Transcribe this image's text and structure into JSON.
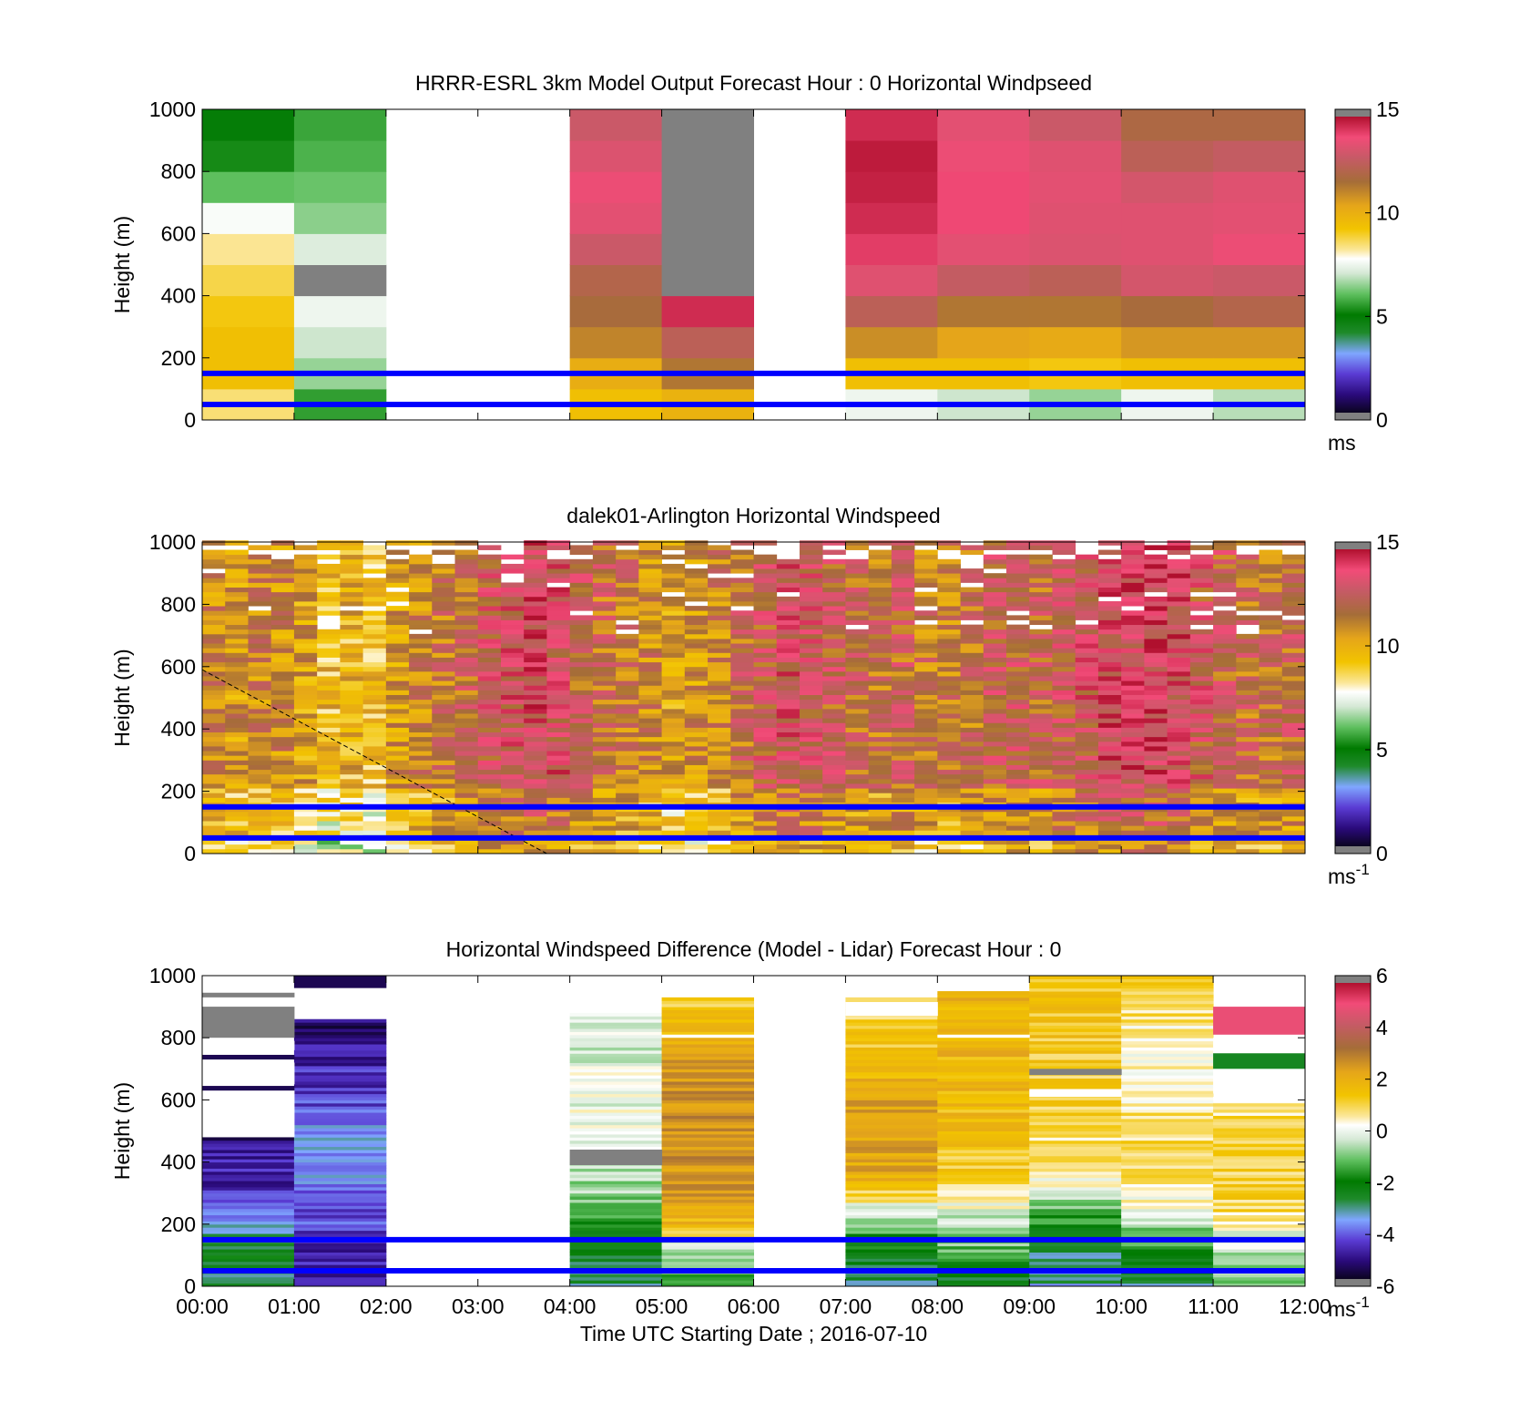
{
  "chart_data": [
    {
      "type": "heatmap",
      "title": "HRRR-ESRL 3km Model Output   Forecast Hour : 0 Horizontal Windpseed",
      "xlabel": "",
      "ylabel": "Height (m)",
      "xlim": [
        0,
        12
      ],
      "ylim": [
        0,
        1000
      ],
      "y_ticks": [
        "0",
        "200",
        "400",
        "600",
        "800",
        "1000"
      ],
      "x_ticks": [],
      "colorbar": {
        "min": 0,
        "max": 15,
        "ticks": [
          "0",
          "5",
          "10",
          "15"
        ],
        "unit": "ms",
        "unit_sup": ""
      },
      "reference_lines_m": [
        50,
        150
      ],
      "reference_line_color": "#0000ff",
      "cell_height_m": 100,
      "columns": [
        {
          "t0": 0,
          "t1": 1,
          "values": [
            8.5,
            9.5,
            9.5,
            9.2,
            8.8,
            8.3,
            7.7,
            6.0,
            5.2,
            4.8
          ]
        },
        {
          "t0": 1,
          "t1": 2,
          "values": [
            5.5,
            6.5,
            7.0,
            7.5,
            "nan",
            7.2,
            6.4,
            6.1,
            5.8,
            5.6
          ]
        },
        {
          "t0": 4,
          "t1": 5,
          "values": [
            9.5,
            10.2,
            11.2,
            11.8,
            12.2,
            13.0,
            13.6,
            13.8,
            13.4,
            13.0
          ]
        },
        {
          "t0": 5,
          "t1": 6,
          "values": [
            10.0,
            11.5,
            12.5,
            14.5,
            "nan",
            "nan",
            "nan",
            "nan",
            "nan",
            "nan"
          ]
        },
        {
          "t0": 7,
          "t1": 8,
          "values": [
            7.5,
            9.5,
            11.0,
            12.5,
            13.5,
            14.2,
            14.5,
            14.7,
            14.8,
            14.5
          ]
        },
        {
          "t0": 8,
          "t1": 9,
          "values": [
            7.0,
            9.5,
            10.5,
            11.5,
            12.8,
            13.6,
            14.0,
            14.0,
            13.8,
            13.6
          ]
        },
        {
          "t0": 9,
          "t1": 10,
          "values": [
            6.5,
            9.2,
            10.3,
            11.5,
            12.5,
            13.4,
            13.5,
            13.6,
            13.5,
            13.0
          ]
        },
        {
          "t0": 10,
          "t1": 11,
          "values": [
            7.5,
            9.5,
            10.8,
            11.8,
            13.2,
            13.5,
            13.5,
            13.2,
            12.5,
            12.0
          ]
        },
        {
          "t0": 11,
          "t1": 12,
          "values": [
            6.8,
            9.5,
            10.8,
            12.2,
            13.0,
            13.8,
            13.6,
            13.5,
            12.8,
            12.0
          ]
        }
      ],
      "undefined_value_color": "#808080"
    },
    {
      "type": "heatmap",
      "title": "dalek01-Arlington  Horizontal Windspeed",
      "xlabel": "",
      "ylabel": "Height (m)",
      "xlim": [
        0,
        12
      ],
      "ylim": [
        0,
        1000
      ],
      "y_ticks": [
        "0",
        "200",
        "400",
        "600",
        "800",
        "1000"
      ],
      "x_ticks": [],
      "colorbar": {
        "min": 0,
        "max": 15,
        "ticks": [
          "0",
          "5",
          "10",
          "15"
        ],
        "unit": "ms",
        "unit_sup": "-1"
      },
      "reference_lines_m": [
        50,
        150
      ],
      "reference_line_color": "#0000ff",
      "time_step_h": 0.25,
      "cell_height_m": 15,
      "profile_mean_ms": [
        11.2,
        10.8,
        11.2,
        11.0,
        10.6,
        9.6,
        9.8,
        9.4,
        10.8,
        11.2,
        11.6,
        12.2,
        12.8,
        13.2,
        13.6,
        13.2,
        12.4,
        12.0,
        11.6,
        11.2,
        10.4,
        10.8,
        11.2,
        12.0,
        12.6,
        13.2,
        12.8,
        12.4,
        12.0,
        11.8,
        12.2,
        11.6,
        11.4,
        11.8,
        12.4,
        12.6,
        12.2,
        12.6,
        13.0,
        13.6,
        13.6,
        13.8,
        13.6,
        12.8,
        12.4,
        12.0,
        11.8,
        12.2
      ],
      "dashed_line": {
        "x": [
          0,
          3.75
        ],
        "y": [
          590,
          0
        ],
        "color": "#000000"
      }
    },
    {
      "type": "heatmap",
      "title": "Horizontal Windspeed Difference (Model - Lidar) Forecast Hour : 0",
      "xlabel": "Time UTC  Starting Date ; 2016-07-10",
      "ylabel": "Height (m)",
      "xlim": [
        0,
        12
      ],
      "ylim": [
        0,
        1000
      ],
      "y_ticks": [
        "0",
        "200",
        "400",
        "600",
        "800",
        "1000"
      ],
      "x_ticks": [
        "00:00",
        "01:00",
        "02:00",
        "03:00",
        "04:00",
        "05:00",
        "06:00",
        "07:00",
        "08:00",
        "09:00",
        "10:00",
        "11:00",
        "12:00"
      ],
      "colorbar": {
        "min": -6,
        "max": 6,
        "ticks": [
          "-6",
          "-4",
          "-2",
          "0",
          "2",
          "4",
          "6"
        ],
        "unit": "ms",
        "unit_sup": "-1"
      },
      "reference_lines_m": [
        50,
        150
      ],
      "reference_line_color": "#0000ff",
      "columns": [
        {
          "t0": 0,
          "t1": 1,
          "top_m": 480,
          "profile": [
            [
              0,
              -3.0
            ],
            [
              100,
              -2.2
            ],
            [
              200,
              -3.6
            ],
            [
              300,
              -4.6
            ],
            [
              480,
              -5.2
            ]
          ]
        },
        {
          "t0": 1,
          "t1": 2,
          "top_m": 860,
          "profile": [
            [
              0,
              -5.0
            ],
            [
              150,
              -4.6
            ],
            [
              350,
              -3.8
            ],
            [
              450,
              -3.5
            ],
            [
              600,
              -4.4
            ],
            [
              860,
              -5.4
            ]
          ]
        },
        {
          "t0": 4,
          "t1": 5,
          "top_m": 880,
          "profile": [
            [
              0,
              -3.2
            ],
            [
              150,
              -2.2
            ],
            [
              300,
              -0.8
            ],
            [
              450,
              -0.2
            ],
            [
              600,
              0.0
            ],
            [
              880,
              -0.3
            ]
          ]
        },
        {
          "t0": 5,
          "t1": 6,
          "top_m": 930,
          "profile": [
            [
              0,
              -1.8
            ],
            [
              150,
              0.0
            ],
            [
              200,
              1.8
            ],
            [
              300,
              2.5
            ],
            [
              500,
              2.8
            ],
            [
              700,
              2.6
            ],
            [
              930,
              1.2
            ]
          ]
        },
        {
          "t0": 7,
          "t1": 8,
          "top_m": 930,
          "profile": [
            [
              0,
              -3.0
            ],
            [
              150,
              -2.0
            ],
            [
              250,
              0.0
            ],
            [
              350,
              2.2
            ],
            [
              550,
              2.6
            ],
            [
              750,
              1.5
            ],
            [
              930,
              1.0
            ]
          ]
        },
        {
          "t0": 8,
          "t1": 9,
          "top_m": 945,
          "profile": [
            [
              0,
              -2.8
            ],
            [
              150,
              -1.0
            ],
            [
              250,
              0.0
            ],
            [
              350,
              1.2
            ],
            [
              600,
              1.8
            ],
            [
              945,
              2.0
            ]
          ]
        },
        {
          "t0": 9,
          "t1": 10,
          "top_m": 1000,
          "profile": [
            [
              0,
              -3.4
            ],
            [
              150,
              -2.6
            ],
            [
              250,
              -1.2
            ],
            [
              350,
              0.5
            ],
            [
              600,
              1.2
            ],
            [
              1000,
              1.5
            ]
          ]
        },
        {
          "t0": 10,
          "t1": 11,
          "top_m": 1000,
          "profile": [
            [
              0,
              -3.0
            ],
            [
              150,
              -1.5
            ],
            [
              250,
              0.2
            ],
            [
              400,
              1.2
            ],
            [
              700,
              0.2
            ],
            [
              1000,
              1.2
            ]
          ]
        },
        {
          "t0": 11,
          "t1": 12,
          "top_m": 600,
          "profile": [
            [
              0,
              -1.0
            ],
            [
              150,
              -0.2
            ],
            [
              250,
              1.0
            ],
            [
              400,
              1.2
            ],
            [
              600,
              0.8
            ]
          ]
        }
      ],
      "gaps": [
        {
          "t0": 0,
          "t1": 1,
          "intervals": [
            [
              480,
              640
            ],
            [
              650,
              720
            ],
            [
              760,
              790
            ],
            [
              900,
              1000
            ]
          ]
        },
        {
          "t0": 1,
          "t1": 2,
          "intervals": [
            [
              910,
              960
            ]
          ]
        },
        {
          "t0": 5,
          "t1": 6,
          "intervals": [
            [
              800,
              810
            ]
          ]
        },
        {
          "t0": 7,
          "t1": 8,
          "intervals": [
            [
              870,
              915
            ]
          ]
        },
        {
          "t0": 8,
          "t1": 9,
          "intervals": [
            [
              800,
              810
            ]
          ]
        },
        {
          "t0": 9,
          "t1": 10,
          "intervals": [
            [
              610,
              635
            ]
          ]
        },
        {
          "t0": 11,
          "t1": 12,
          "intervals": [
            [
              590,
              610
            ],
            [
              620,
              700
            ],
            [
              750,
              800
            ]
          ]
        }
      ],
      "overlays": [
        {
          "t0": 0,
          "t1": 1,
          "y0": 800,
          "y1": 900,
          "value": "nan"
        },
        {
          "t0": 0,
          "t1": 1,
          "y0": 930,
          "y1": 945,
          "value": "nan"
        },
        {
          "t0": 1,
          "t1": 2,
          "y0": 960,
          "y1": 1000,
          "value": -5.6
        },
        {
          "t0": 0,
          "t1": 1,
          "y0": 630,
          "y1": 645,
          "value": -5.6
        },
        {
          "t0": 0,
          "t1": 1,
          "y0": 730,
          "y1": 745,
          "value": -5.6
        },
        {
          "t0": 4,
          "t1": 5,
          "y0": 390,
          "y1": 440,
          "value": "nan"
        },
        {
          "t0": 9,
          "t1": 10,
          "y0": 680,
          "y1": 700,
          "value": "nan"
        },
        {
          "t0": 11,
          "t1": 12,
          "y0": 810,
          "y1": 900,
          "value": 5.0
        },
        {
          "t0": 11,
          "t1": 12,
          "y0": 700,
          "y1": 750,
          "value": -2.6
        }
      ],
      "undefined_value_color": "#808080"
    }
  ]
}
